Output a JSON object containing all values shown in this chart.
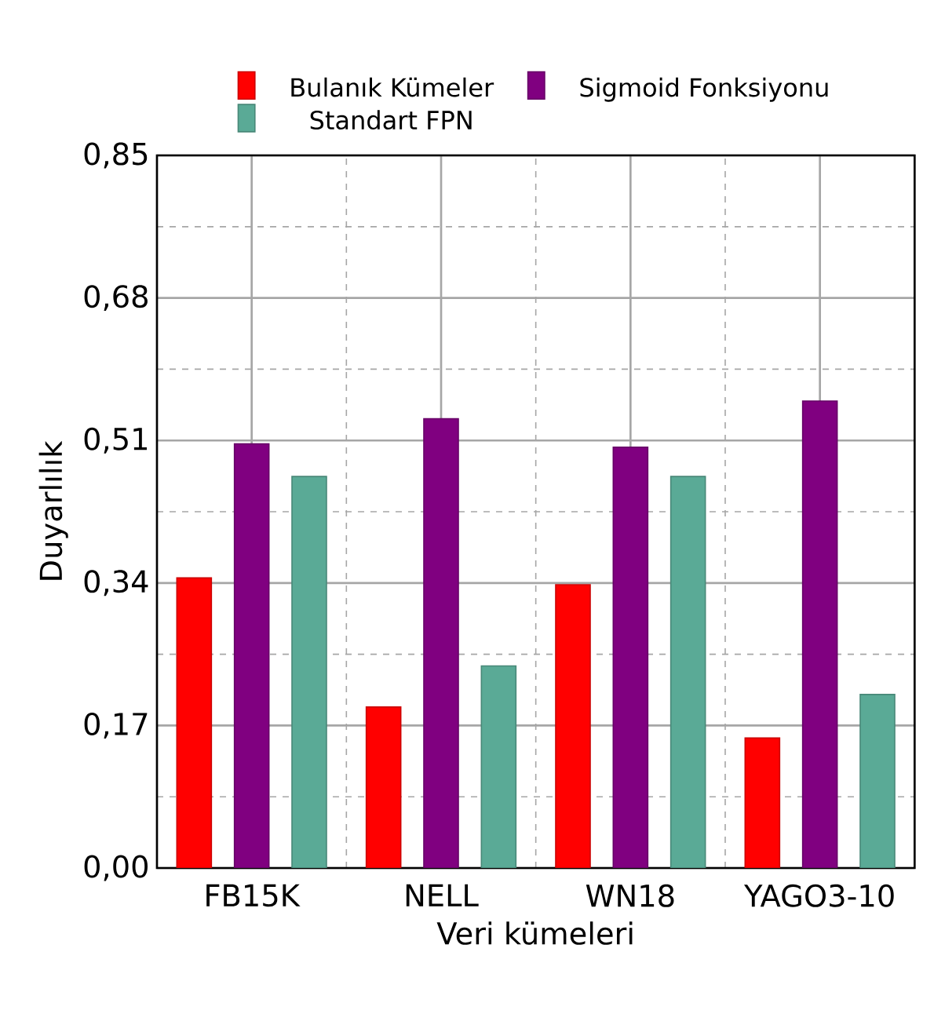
{
  "chart_data": {
    "type": "bar",
    "xlabel": "Veri kümeleri",
    "ylabel": "Duyarlılık",
    "categories": [
      "FB15K",
      "NELL",
      "WN18",
      "YAGO3-10"
    ],
    "series": [
      {
        "name": "Bulanık Kümeler",
        "color": "#ff0000",
        "values": [
          0.346,
          0.192,
          0.338,
          0.155
        ]
      },
      {
        "name": "Sigmoid Fonksiyonu",
        "color": "#800080",
        "values": [
          0.506,
          0.536,
          0.502,
          0.557
        ]
      },
      {
        "name": "Standart FPN",
        "color": "#5aaa96",
        "values": [
          0.467,
          0.241,
          0.467,
          0.207
        ]
      }
    ],
    "ylim": [
      0,
      0.85
    ],
    "yticks": [
      {
        "value": 0,
        "label": "0,00"
      },
      {
        "value": 0.17,
        "label": "0,17"
      },
      {
        "value": 0.34,
        "label": "0,34"
      },
      {
        "value": 0.51,
        "label": "0,51"
      },
      {
        "value": 0.68,
        "label": "0,68"
      },
      {
        "value": 0.85,
        "label": "0,85"
      }
    ],
    "grid": true,
    "legend": "top"
  }
}
